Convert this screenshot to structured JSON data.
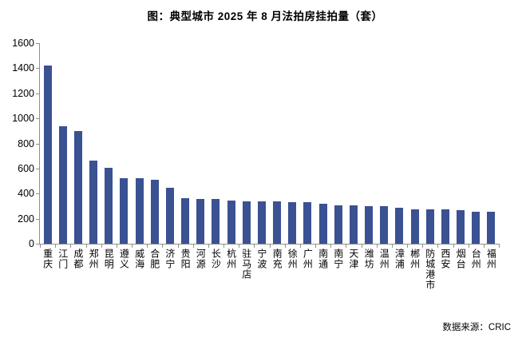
{
  "page": {
    "title": "图：典型城市 2025 年 8 月法拍房挂拍量（套）",
    "source_note": "数据来源：CRIC"
  },
  "colors": {
    "bar": "#3A5192",
    "axis": "#8F8F8F",
    "text": "#000000",
    "background": "#FFFFFF"
  },
  "chart_data": {
    "type": "bar",
    "title": "图：典型城市 2025 年 8 月法拍房挂拍量（套）",
    "categories": [
      "重庆",
      "江门",
      "成都",
      "郑州",
      "昆明",
      "遵义",
      "威海",
      "合肥",
      "济宁",
      "贵阳",
      "河源",
      "长沙",
      "杭州",
      "驻马店",
      "宁波",
      "南充",
      "徐州",
      "广州",
      "南通",
      "南宁",
      "天津",
      "潍坊",
      "温州",
      "漳浦",
      "郴州",
      "防城港市",
      "西安",
      "烟台",
      "台州",
      "福州"
    ],
    "values": [
      1420,
      940,
      900,
      665,
      605,
      525,
      520,
      510,
      445,
      365,
      355,
      355,
      345,
      340,
      340,
      340,
      330,
      330,
      320,
      305,
      305,
      300,
      300,
      285,
      275,
      275,
      275,
      265,
      255,
      255
    ],
    "xlabel": "",
    "ylabel": "",
    "ylim": [
      0,
      1600
    ],
    "yticks": [
      0,
      200,
      400,
      600,
      800,
      1000,
      1200,
      1400,
      1600
    ],
    "ytick_labels": [
      "0",
      "200",
      "400",
      "600",
      "800",
      "1000",
      "1200",
      "1400",
      "1600"
    ],
    "grid": false,
    "legend": false,
    "bar_orientation": "vertical",
    "category_label_orientation": "vertical",
    "source": "数据来源：CRIC"
  }
}
